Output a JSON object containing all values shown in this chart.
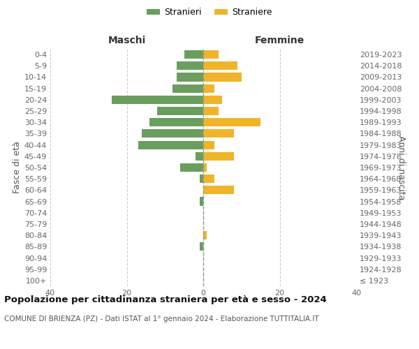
{
  "age_groups": [
    "100+",
    "95-99",
    "90-94",
    "85-89",
    "80-84",
    "75-79",
    "70-74",
    "65-69",
    "60-64",
    "55-59",
    "50-54",
    "45-49",
    "40-44",
    "35-39",
    "30-34",
    "25-29",
    "20-24",
    "15-19",
    "10-14",
    "5-9",
    "0-4"
  ],
  "birth_years": [
    "≤ 1923",
    "1924-1928",
    "1929-1933",
    "1934-1938",
    "1939-1943",
    "1944-1948",
    "1949-1953",
    "1954-1958",
    "1959-1963",
    "1964-1968",
    "1969-1973",
    "1974-1978",
    "1979-1983",
    "1984-1988",
    "1989-1993",
    "1994-1998",
    "1999-2003",
    "2004-2008",
    "2009-2013",
    "2014-2018",
    "2019-2023"
  ],
  "males": [
    0,
    0,
    0,
    1,
    0,
    0,
    0,
    1,
    0,
    1,
    6,
    2,
    17,
    16,
    14,
    12,
    24,
    8,
    7,
    7,
    5
  ],
  "females": [
    0,
    0,
    0,
    0,
    1,
    0,
    0,
    0,
    8,
    3,
    1,
    8,
    3,
    8,
    15,
    4,
    5,
    3,
    10,
    9,
    4
  ],
  "male_color": "#6a9e5e",
  "female_color": "#f0b429",
  "grid_color": "#cccccc",
  "center_line_color": "#999999",
  "title": "Popolazione per cittadinanza straniera per età e sesso - 2024",
  "subtitle": "COMUNE DI BRIENZA (PZ) - Dati ISTAT al 1° gennaio 2024 - Elaborazione TUTTITALIA.IT",
  "legend_male": "Stranieri",
  "legend_female": "Straniere",
  "header_left": "Maschi",
  "header_right": "Femmine",
  "ylabel_left": "Fasce di età",
  "ylabel_right": "Anni di nascita",
  "xlim": 40,
  "bar_height": 0.75,
  "tick_fontsize": 8,
  "label_fontsize": 9,
  "header_fontsize": 10,
  "title_fontsize": 9.5,
  "subtitle_fontsize": 7.5
}
